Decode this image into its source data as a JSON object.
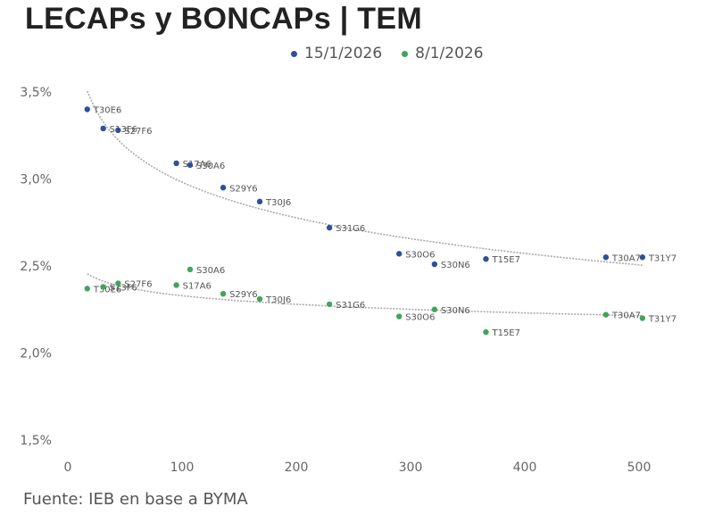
{
  "title": "LECAPs y BONCAPs | TEM",
  "source": "Fuente: IEB en base a BYMA",
  "chart_data": {
    "type": "scatter",
    "title": "LECAPs y BONCAPs | TEM",
    "xlabel": "",
    "ylabel": "",
    "xlim": [
      0,
      500
    ],
    "ylim": [
      1.5,
      3.5
    ],
    "x_ticks": [
      "0",
      "100",
      "200",
      "300",
      "400",
      "500"
    ],
    "y_ticks": [
      "1,5%",
      "2,0%",
      "2,5%",
      "3,0%",
      "3,5%"
    ],
    "grid": false,
    "legend_position": "top",
    "series": [
      {
        "name": "15/1/2026",
        "color": "#2e4f9a",
        "points": [
          {
            "x": 17,
            "y": 3.4,
            "label": "T30E6"
          },
          {
            "x": 31,
            "y": 3.29,
            "label": "S13F6"
          },
          {
            "x": 44,
            "y": 3.28,
            "label": "S27F6"
          },
          {
            "x": 95,
            "y": 3.09,
            "label": "S17A6"
          },
          {
            "x": 107,
            "y": 3.08,
            "label": "S30A6"
          },
          {
            "x": 136,
            "y": 2.95,
            "label": "S29Y6"
          },
          {
            "x": 168,
            "y": 2.87,
            "label": "T30J6"
          },
          {
            "x": 229,
            "y": 2.72,
            "label": "S31G6"
          },
          {
            "x": 290,
            "y": 2.57,
            "label": "S30O6"
          },
          {
            "x": 321,
            "y": 2.51,
            "label": "S30N6"
          },
          {
            "x": 366,
            "y": 2.54,
            "label": "T15E7"
          },
          {
            "x": 471,
            "y": 2.55,
            "label": "T30A7"
          },
          {
            "x": 503,
            "y": 2.55,
            "label": "T31Y7"
          }
        ]
      },
      {
        "name": "8/1/2026",
        "color": "#3fa55a",
        "points": [
          {
            "x": 17,
            "y": 2.37,
            "label": "T30E6"
          },
          {
            "x": 31,
            "y": 2.38,
            "label": "S13F6"
          },
          {
            "x": 44,
            "y": 2.4,
            "label": "S27F6"
          },
          {
            "x": 95,
            "y": 2.39,
            "label": "S17A6"
          },
          {
            "x": 107,
            "y": 2.48,
            "label": "S30A6"
          },
          {
            "x": 136,
            "y": 2.34,
            "label": "S29Y6"
          },
          {
            "x": 168,
            "y": 2.31,
            "label": "T30J6"
          },
          {
            "x": 229,
            "y": 2.28,
            "label": "S31G6"
          },
          {
            "x": 290,
            "y": 2.21,
            "label": "S30O6"
          },
          {
            "x": 321,
            "y": 2.25,
            "label": "S30N6"
          },
          {
            "x": 366,
            "y": 2.12,
            "label": "T15E7"
          },
          {
            "x": 471,
            "y": 2.22,
            "label": "T30A7"
          },
          {
            "x": 503,
            "y": 2.2,
            "label": "T31Y7"
          }
        ]
      }
    ],
    "trendlines": [
      {
        "series": "15/1/2026",
        "type": "logarithmic",
        "color": "#aaaaaa",
        "x_range": [
          17,
          503
        ]
      },
      {
        "series": "8/1/2026",
        "type": "logarithmic",
        "color": "#aaaaaa",
        "x_range": [
          17,
          503
        ]
      }
    ]
  }
}
